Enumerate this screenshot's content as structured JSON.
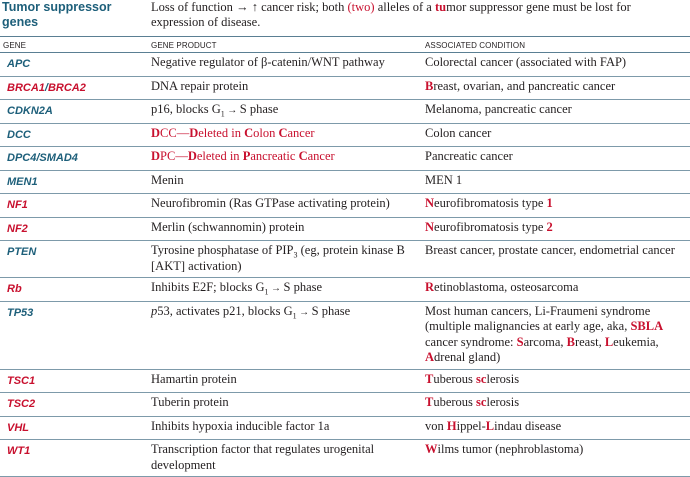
{
  "header": {
    "title": "Tumor suppressor genes",
    "desc_pre": "Loss of function ",
    "desc_arrow1": "→",
    "desc_arrow2": "↑",
    "desc_mid1": " cancer risk; both ",
    "desc_two": "(two)",
    "desc_mid2": " alleles of a ",
    "desc_tu": "tu",
    "desc_mid3": "mor suppressor gene must be lost for expression of disease."
  },
  "columns": {
    "gene": "GENE",
    "product": "GENE PRODUCT",
    "condition": "ASSOCIATED CONDITION"
  },
  "rows": [
    {
      "gene": "APC",
      "product": "Negative regulator of β-catenin/WNT pathway",
      "condition": "Colorectal cancer (associated with FAP)"
    },
    {
      "gene1": "BRCA1",
      "gene_sep": "/",
      "gene2": "BRCA2",
      "product": "DNA repair protein",
      "condition_hl": "B",
      "condition_rest": "reast, ovarian, and pancreatic cancer"
    },
    {
      "gene": "CDKN2A",
      "product_pre": "p16, blocks G",
      "product_sub": "1",
      "product_arrow": " → ",
      "product_post": "S phase",
      "condition": "Melanoma, pancreatic cancer"
    },
    {
      "gene": "DCC",
      "product_1": "D",
      "product_2": "CC—",
      "product_3": "D",
      "product_4": "eleted in ",
      "product_5": "C",
      "product_6": "olon ",
      "product_7": "C",
      "product_8": "ancer",
      "condition": "Colon cancer"
    },
    {
      "gene": "DPC4/SMAD4",
      "product_1": "D",
      "product_2": "PC—",
      "product_3": "D",
      "product_4": "eleted in ",
      "product_5": "P",
      "product_6": "ancreatic ",
      "product_7": "C",
      "product_8": "ancer",
      "condition": "Pancreatic cancer"
    },
    {
      "gene": "MEN1",
      "product": "Menin",
      "condition": "MEN 1"
    },
    {
      "gene": "NF1",
      "product": "Neurofibromin (Ras GTPase activating protein)",
      "condition_hl": "N",
      "condition_mid": "eurofibromatosis type ",
      "condition_num": "1"
    },
    {
      "gene": "NF2",
      "product": "Merlin (schwannomin) protein",
      "condition_hl": "N",
      "condition_mid": "eurofibromatosis type ",
      "condition_num": "2"
    },
    {
      "gene": "PTEN",
      "product_pre": "Tyrosine phosphatase of PIP",
      "product_sub": "3",
      "product_post": " (eg, protein kinase B [AKT] activation)",
      "condition": "Breast cancer, prostate cancer, endometrial cancer"
    },
    {
      "gene": "Rb",
      "product_pre": "Inhibits E2F; blocks G",
      "product_sub": "1",
      "product_arrow": " → ",
      "product_post": "S phase",
      "condition_hl": "R",
      "condition_rest": "etinoblastoma, osteosarcoma"
    },
    {
      "gene": "TP53",
      "product_italic": "p",
      "product_pre": "53, activates p21, blocks G",
      "product_sub": "1",
      "product_arrow": " → ",
      "product_post": "S phase",
      "condition_1": "Most human cancers, Li-Fraumeni syndrome (multiple malignancies at early age, aka, ",
      "condition_sbla": "SBLA",
      "condition_2": " cancer syndrome: ",
      "condition_s": "S",
      "condition_3": "arcoma, ",
      "condition_b": "B",
      "condition_4": "reast, ",
      "condition_l": "L",
      "condition_5": "eukemia, ",
      "condition_a": "A",
      "condition_6": "drenal gland)"
    },
    {
      "gene": "TSC1",
      "product": "Hamartin protein",
      "condition_t": "T",
      "condition_t_rest": "uberous ",
      "condition_s": "sc",
      "condition_s_rest": "lerosis"
    },
    {
      "gene": "TSC2",
      "product": "Tuberin protein",
      "condition_t": "T",
      "condition_t_rest": "uberous ",
      "condition_s": "sc",
      "condition_s_rest": "lerosis"
    },
    {
      "gene": "VHL",
      "product": "Inhibits hypoxia inducible factor 1a",
      "condition_1": "von ",
      "condition_h": "H",
      "condition_2": "ippel-",
      "condition_l": "L",
      "condition_3": "indau disease"
    },
    {
      "gene": "WT1",
      "product": "Transcription factor that regulates urogenital development",
      "condition_w": "W",
      "condition_rest": "ilms tumor (nephroblastoma)"
    }
  ],
  "colors": {
    "blue": "#1d5f7a",
    "red": "#c8102e",
    "rule": "#7d9aaa"
  }
}
